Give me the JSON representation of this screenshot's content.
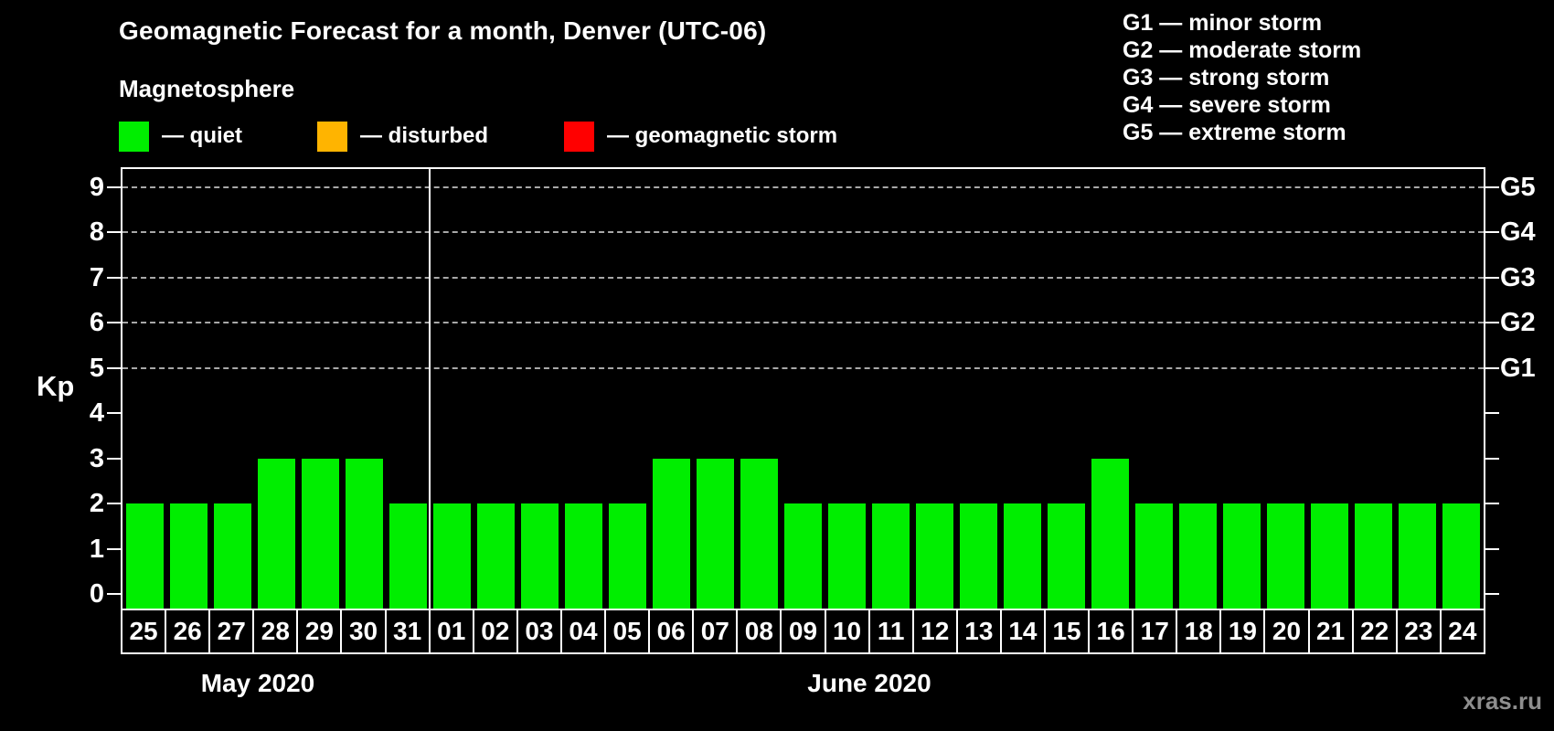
{
  "title": "Geomagnetic Forecast for a month, Denver (UTC-06)",
  "subtitle": "Magnetosphere",
  "legend": {
    "items": [
      {
        "name": "quiet",
        "label": "— quiet",
        "color": "#00ee00"
      },
      {
        "name": "disturbed",
        "label": "— disturbed",
        "color": "#ffb400"
      },
      {
        "name": "geomagnetic-storm",
        "label": "— geomagnetic storm",
        "color": "#ff0000"
      }
    ]
  },
  "storm_scale_legend": {
    "lines": [
      "G1 — minor storm",
      "G2 — moderate storm",
      "G3 — strong storm",
      "G4 — severe storm",
      "G5 — extreme storm"
    ]
  },
  "watermark": "xras.ru",
  "chart_data": {
    "type": "bar",
    "title": "Geomagnetic Forecast for a month, Denver (UTC-06)",
    "ylabel": "Kp",
    "ylim": [
      0,
      9
    ],
    "y_ticks": [
      0,
      1,
      2,
      3,
      4,
      5,
      6,
      7,
      8,
      9
    ],
    "gridlines_at": [
      5,
      6,
      7,
      8,
      9
    ],
    "grid": "dashed, only at G-storm levels",
    "right_axis_labels": {
      "5": "G1",
      "6": "G2",
      "7": "G3",
      "8": "G4",
      "9": "G5"
    },
    "bar_color": "#00ee00",
    "legend_position": "top",
    "months": [
      {
        "label": "May 2020",
        "days": [
          "25",
          "26",
          "27",
          "28",
          "29",
          "30",
          "31"
        ],
        "values": [
          2,
          2,
          2,
          3,
          3,
          3,
          2
        ]
      },
      {
        "label": "June 2020",
        "days": [
          "01",
          "02",
          "03",
          "04",
          "05",
          "06",
          "07",
          "08",
          "09",
          "10",
          "11",
          "12",
          "13",
          "14",
          "15",
          "16",
          "17",
          "18",
          "19",
          "20",
          "21",
          "22",
          "23",
          "24"
        ],
        "values": [
          2,
          2,
          2,
          2,
          2,
          3,
          3,
          3,
          2,
          2,
          2,
          2,
          2,
          2,
          2,
          3,
          2,
          2,
          2,
          2,
          2,
          2,
          2,
          2
        ]
      }
    ]
  }
}
